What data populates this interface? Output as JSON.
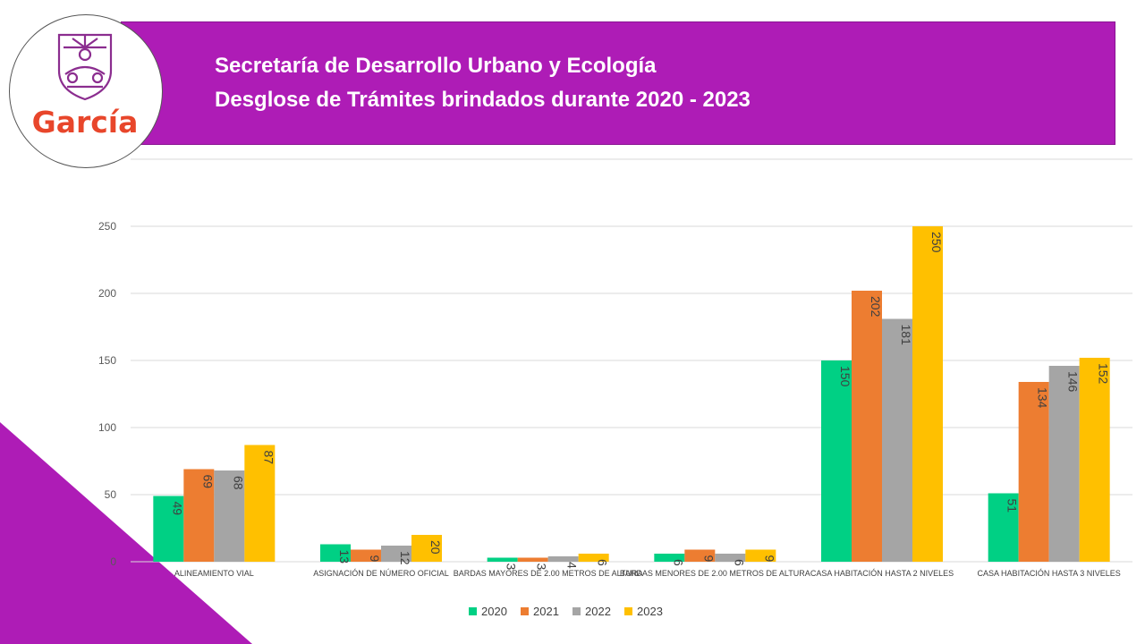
{
  "header": {
    "title_line1": "Secretaría de Desarrollo Urbano y Ecología",
    "title_line2": "Desglose de Trámites brindados durante 2020 - 2023"
  },
  "logo": {
    "text": "García",
    "emblem": "shield-emblem-icon"
  },
  "colors": {
    "banner": "#ae1cb6",
    "corner": "#ae1cb6"
  },
  "chart_data": {
    "type": "bar",
    "categories": [
      "ALINEAMIENTO VIAL",
      "ASIGNACIÓN DE NÚMERO OFICIAL",
      "BARDAS MAYORES DE 2.00 METROS DE ALTURA",
      "BARDAS MENORES DE 2.00 METROS DE ALTURA",
      "CASA HABITACIÓN HASTA 2 NIVELES",
      "CASA HABITACIÓN HASTA 3 NIVELES"
    ],
    "series": [
      {
        "name": "2020",
        "color": "#00d084",
        "values": [
          49,
          13,
          3,
          6,
          150,
          51
        ]
      },
      {
        "name": "2021",
        "color": "#ed7d31",
        "values": [
          69,
          9,
          3,
          9,
          202,
          134
        ]
      },
      {
        "name": "2022",
        "color": "#a5a5a5",
        "values": [
          68,
          12,
          4,
          6,
          181,
          146
        ]
      },
      {
        "name": "2023",
        "color": "#ffc000",
        "values": [
          87,
          20,
          6,
          9,
          250,
          152
        ]
      }
    ],
    "ylim": [
      0,
      300
    ],
    "yticks": [
      0,
      50,
      100,
      150,
      200,
      250,
      300
    ],
    "grid": true,
    "legend_position": "bottom"
  }
}
